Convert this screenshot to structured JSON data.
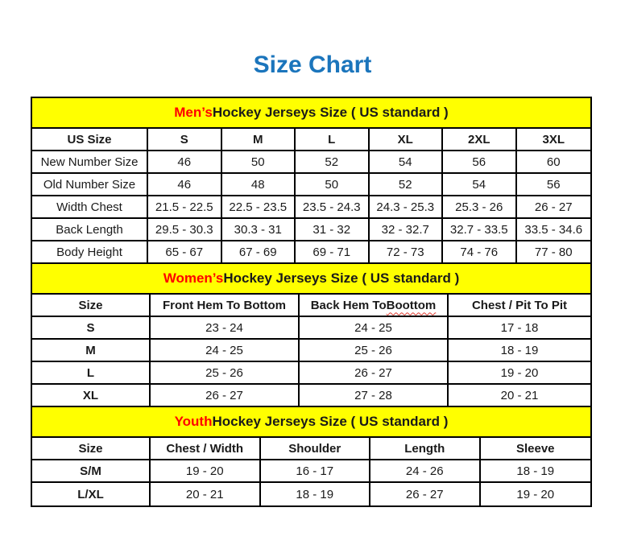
{
  "page_title": "Size Chart",
  "colors": {
    "title_blue": "#1B75BC",
    "section_highlight_red": "#FF0000",
    "banner_yellow": "#FFFF00",
    "border_black": "#000000",
    "text_black": "#1A1A1A",
    "spellcheck_red": "#E03C31"
  },
  "sections": {
    "men": {
      "heading_highlight": "Men’s",
      "heading_rest": " Hockey Jerseys Size ( US standard )",
      "columns": [
        "US Size",
        "S",
        "M",
        "L",
        "XL",
        "2XL",
        "3XL"
      ],
      "rows": [
        {
          "label": "New Number Size",
          "values": [
            "46",
            "50",
            "52",
            "54",
            "56",
            "60"
          ]
        },
        {
          "label": "Old Number Size",
          "values": [
            "46",
            "48",
            "50",
            "52",
            "54",
            "56"
          ]
        },
        {
          "label": "Width Chest",
          "values": [
            "21.5 - 22.5",
            "22.5 - 23.5",
            "23.5 - 24.3",
            "24.3 - 25.3",
            "25.3 - 26",
            "26 - 27"
          ]
        },
        {
          "label": "Back Length",
          "values": [
            "29.5 - 30.3",
            "30.3 - 31",
            "31 - 32",
            "32 - 32.7",
            "32.7 - 33.5",
            "33.5 - 34.6"
          ]
        },
        {
          "label": "Body Height",
          "values": [
            "65 - 67",
            "67 - 69",
            "69 - 71",
            "72 - 73",
            "74 - 76",
            "77 - 80"
          ]
        }
      ]
    },
    "women": {
      "heading_highlight": "Women’s",
      "heading_rest": " Hockey Jerseys Size ( US standard )",
      "columns": [
        "Size",
        "Front Hem To Bottom",
        "Back Hem To Boottom",
        "Chest / Pit To Pit"
      ],
      "spellcheck": {
        "prefix": "Back Hem To ",
        "flagged": "Boottom"
      },
      "rows": [
        {
          "label": "S",
          "values": [
            "23 - 24",
            "24 - 25",
            "17 - 18"
          ]
        },
        {
          "label": "M",
          "values": [
            "24 - 25",
            "25 - 26",
            "18 - 19"
          ]
        },
        {
          "label": "L",
          "values": [
            "25 - 26",
            "26 - 27",
            "19 - 20"
          ]
        },
        {
          "label": "XL",
          "values": [
            "26 - 27",
            "27 - 28",
            "20 - 21"
          ]
        }
      ]
    },
    "youth": {
      "heading_highlight": "Youth",
      "heading_rest": " Hockey Jerseys Size ( US standard )",
      "columns": [
        "Size",
        "Chest / Width",
        "Shoulder",
        "Length",
        "Sleeve"
      ],
      "rows": [
        {
          "label": "S/M",
          "values": [
            "19 - 20",
            "16 - 17",
            "24 - 26",
            "18 - 19"
          ]
        },
        {
          "label": "L/XL",
          "values": [
            "20 - 21",
            "18 - 19",
            "26 - 27",
            "19 - 20"
          ]
        }
      ]
    }
  }
}
